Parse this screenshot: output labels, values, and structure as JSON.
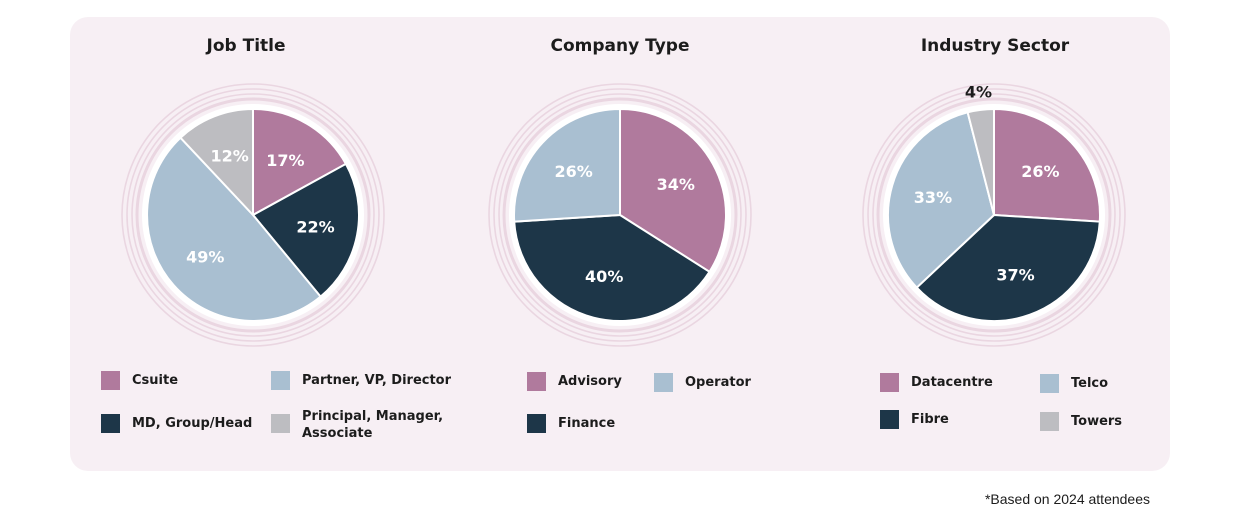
{
  "colors": {
    "mauve": "#b07a9d",
    "navy": "#1d3648",
    "lightblue": "#a9bfd1",
    "grey": "#bdbdc1",
    "ring": "#ead6e1",
    "panel": "#f7eff4"
  },
  "footnote": "*Based on 2024 attendees",
  "chart_data": [
    {
      "type": "pie",
      "title": "Job Title",
      "labels": [
        "Csuite",
        "MD, Group/Head",
        "Partner, VP, Director",
        "Principal, Manager, Associate"
      ],
      "values": [
        17,
        22,
        49,
        12
      ],
      "value_labels": [
        "17%",
        "22%",
        "49%",
        "12%"
      ],
      "colors": [
        "#b07a9d",
        "#1d3648",
        "#a9bfd1",
        "#bdbdc1"
      ],
      "legend": [
        {
          "label": "Csuite",
          "color": "#b07a9d"
        },
        {
          "label": "Partner, VP, Director",
          "color": "#a9bfd1"
        },
        {
          "label": "MD, Group/Head",
          "color": "#1d3648"
        },
        {
          "label": "Principal, Manager,\nAssociate",
          "color": "#bdbdc1"
        }
      ]
    },
    {
      "type": "pie",
      "title": "Company Type",
      "labels": [
        "Advisory",
        "Finance",
        "Operator"
      ],
      "values": [
        34,
        40,
        26
      ],
      "value_labels": [
        "34%",
        "40%",
        "26%"
      ],
      "colors": [
        "#b07a9d",
        "#1d3648",
        "#a9bfd1"
      ],
      "legend": [
        {
          "label": "Advisory",
          "color": "#b07a9d"
        },
        {
          "label": "Operator",
          "color": "#a9bfd1"
        },
        {
          "label": "Finance",
          "color": "#1d3648"
        }
      ]
    },
    {
      "type": "pie",
      "title": "Industry Sector",
      "labels": [
        "Datacentre",
        "Fibre",
        "Telco",
        "Towers"
      ],
      "values": [
        26,
        37,
        33,
        4
      ],
      "value_labels": [
        "26%",
        "37%",
        "33%",
        "4%"
      ],
      "colors": [
        "#b07a9d",
        "#1d3648",
        "#a9bfd1",
        "#bdbdc1"
      ],
      "legend": [
        {
          "label": "Datacentre",
          "color": "#b07a9d"
        },
        {
          "label": "Telco",
          "color": "#a9bfd1"
        },
        {
          "label": "Fibre",
          "color": "#1d3648"
        },
        {
          "label": "Towers",
          "color": "#bdbdc1"
        }
      ]
    }
  ]
}
